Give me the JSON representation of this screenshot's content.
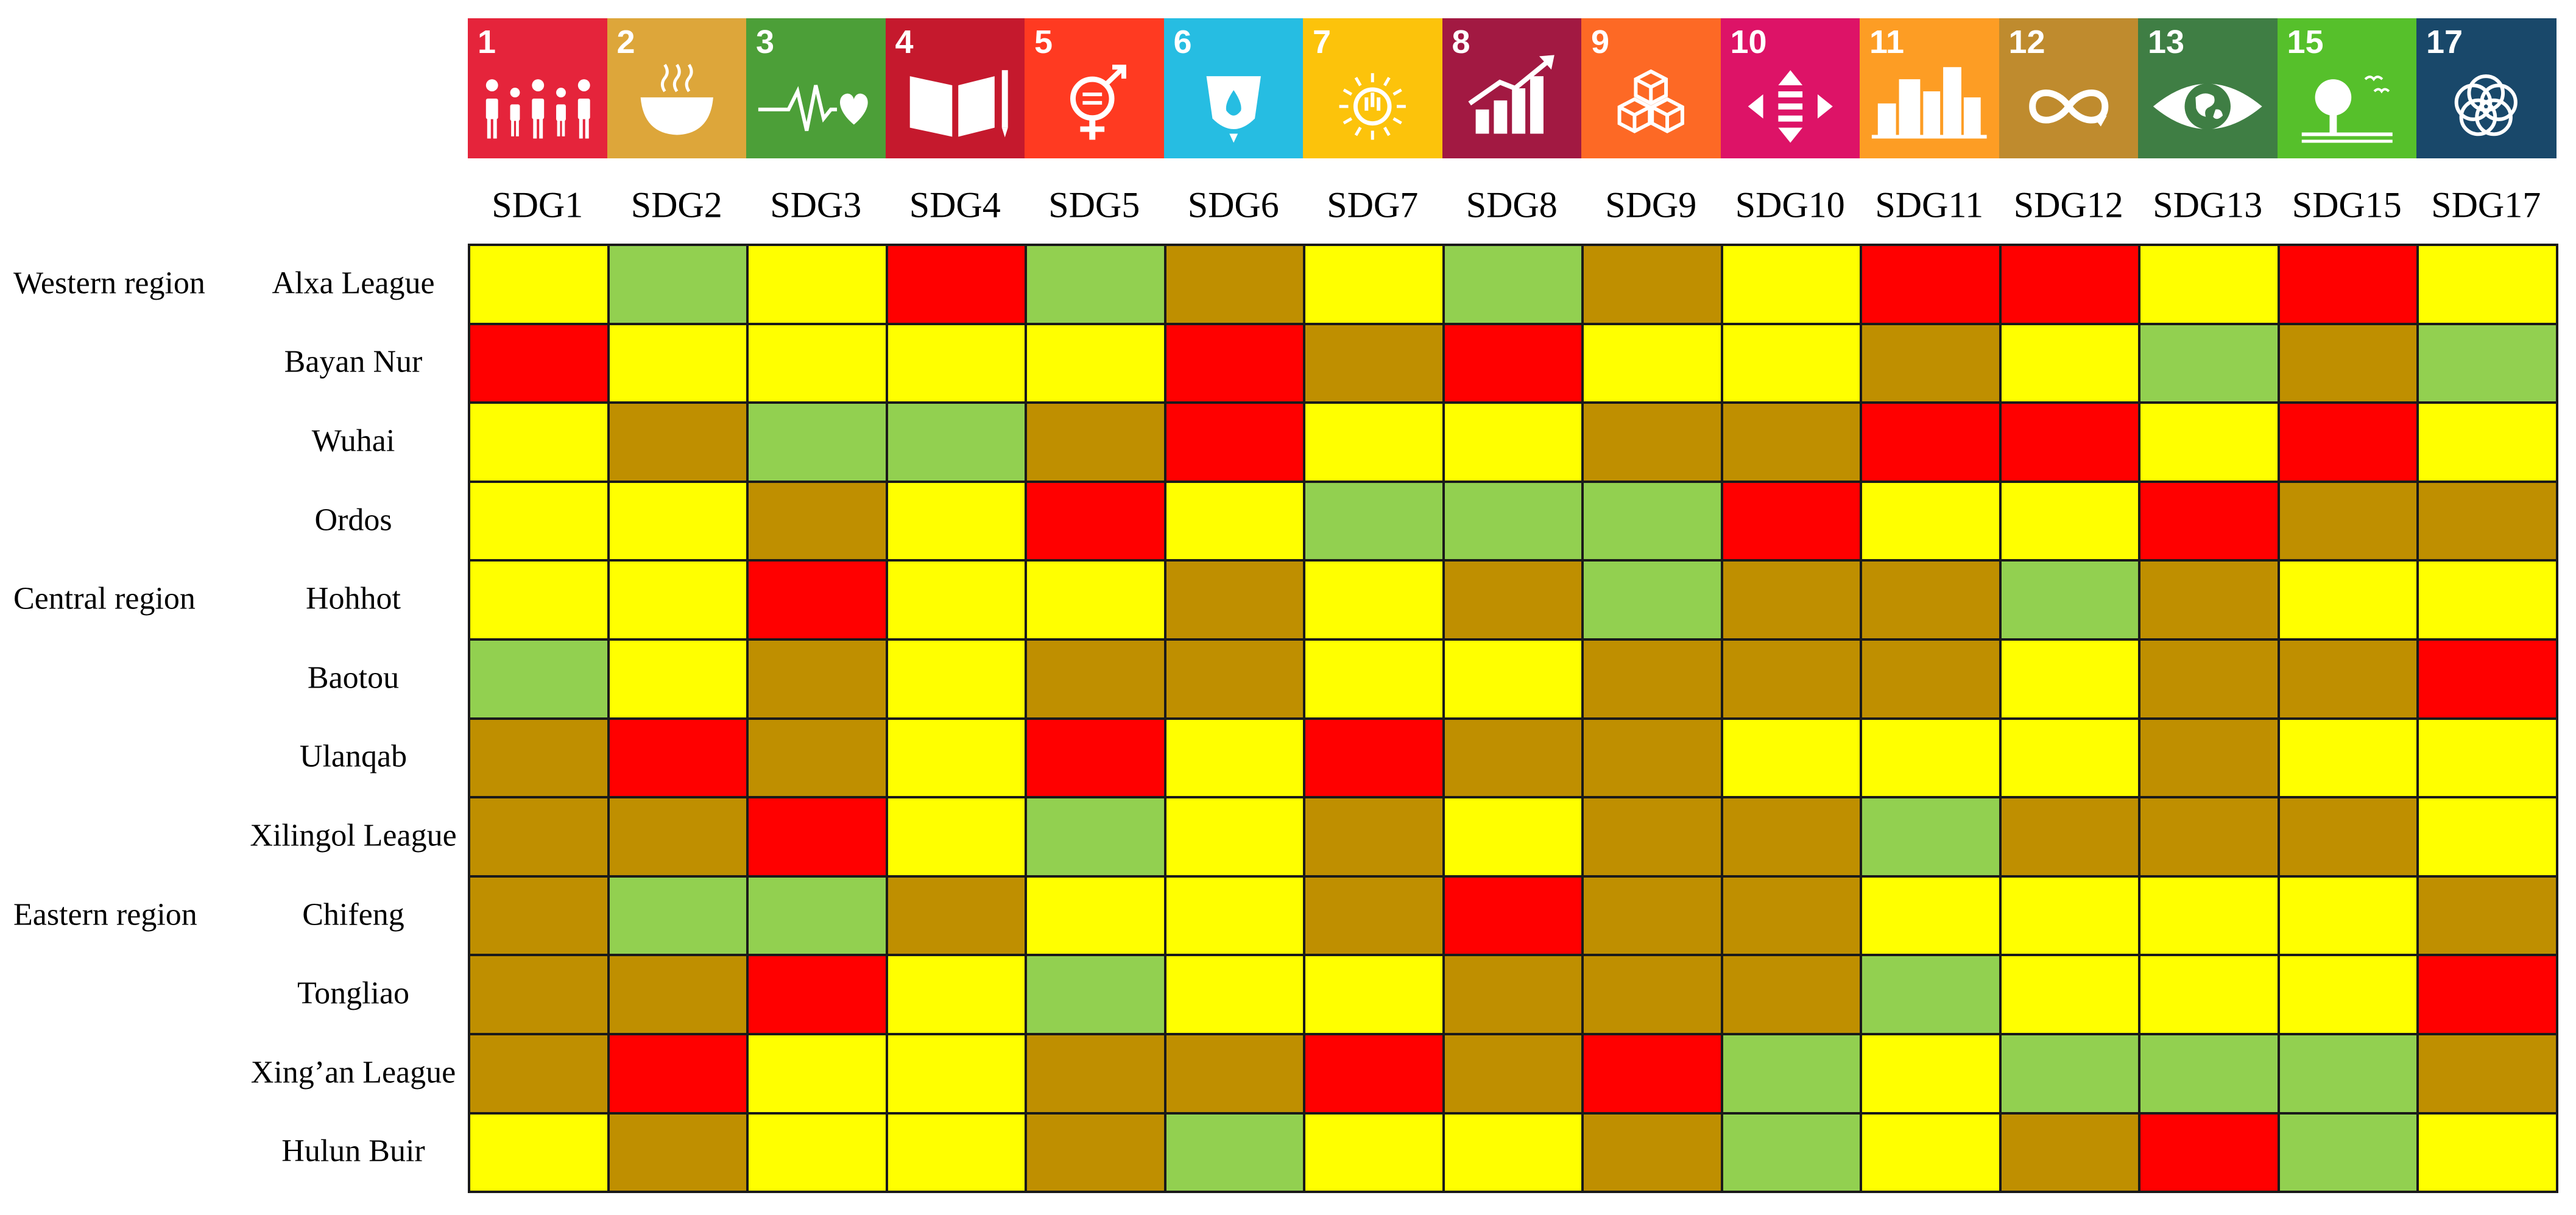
{
  "chart_data": {
    "type": "heatmap",
    "columns": [
      "SDG1",
      "SDG2",
      "SDG3",
      "SDG4",
      "SDG5",
      "SDG6",
      "SDG7",
      "SDG8",
      "SDG9",
      "SDG10",
      "SDG11",
      "SDG12",
      "SDG13",
      "SDG15",
      "SDG17"
    ],
    "tiles": [
      {
        "number": "1",
        "color": "#e5243b",
        "icon": "family-icon"
      },
      {
        "number": "2",
        "color": "#dda63a",
        "icon": "bowl-icon"
      },
      {
        "number": "3",
        "color": "#4c9f38",
        "icon": "heartbeat-icon"
      },
      {
        "number": "4",
        "color": "#c5192d",
        "icon": "book-icon"
      },
      {
        "number": "5",
        "color": "#ff3a21",
        "icon": "gender-equality-icon"
      },
      {
        "number": "6",
        "color": "#26bde2",
        "icon": "water-drop-icon"
      },
      {
        "number": "7",
        "color": "#fcc30b",
        "icon": "sun-power-icon"
      },
      {
        "number": "8",
        "color": "#a21942",
        "icon": "growth-chart-icon"
      },
      {
        "number": "9",
        "color": "#fd6925",
        "icon": "cubes-icon"
      },
      {
        "number": "10",
        "color": "#dd1367",
        "icon": "inequality-arrows-icon"
      },
      {
        "number": "11",
        "color": "#fd9d24",
        "icon": "city-buildings-icon"
      },
      {
        "number": "12",
        "color": "#bf8b2e",
        "icon": "infinity-icon"
      },
      {
        "number": "13",
        "color": "#3f7e44",
        "icon": "eye-globe-icon"
      },
      {
        "number": "15",
        "color": "#56c02b",
        "icon": "tree-birds-icon"
      },
      {
        "number": "17",
        "color": "#19486a",
        "icon": "rings-icon"
      }
    ],
    "regions": [
      {
        "label": "Western region",
        "row": 0
      },
      {
        "label": "Central region",
        "row": 4
      },
      {
        "label": "Eastern region",
        "row": 8
      }
    ],
    "rows": [
      "Alxa League",
      "Bayan Nur",
      "Wuhai",
      "Ordos",
      "Hohhot",
      "Baotou",
      "Ulanqab",
      "Xilingol League",
      "Chifeng",
      "Tongliao",
      "Xing’an League",
      "Hulun Buir"
    ],
    "level_colors": {
      "red": "#ff0000",
      "dark": "#bf8f00",
      "yellow": "#ffff00",
      "green": "#92d050"
    },
    "cells": [
      [
        "yellow",
        "green",
        "yellow",
        "red",
        "green",
        "dark",
        "yellow",
        "green",
        "dark",
        "yellow",
        "red",
        "red",
        "yellow",
        "red",
        "yellow"
      ],
      [
        "red",
        "yellow",
        "yellow",
        "yellow",
        "yellow",
        "red",
        "dark",
        "red",
        "yellow",
        "yellow",
        "dark",
        "yellow",
        "green",
        "dark",
        "green"
      ],
      [
        "yellow",
        "dark",
        "green",
        "green",
        "dark",
        "red",
        "yellow",
        "yellow",
        "dark",
        "dark",
        "red",
        "red",
        "yellow",
        "red",
        "yellow"
      ],
      [
        "yellow",
        "yellow",
        "dark",
        "yellow",
        "red",
        "yellow",
        "green",
        "green",
        "green",
        "red",
        "yellow",
        "yellow",
        "red",
        "dark",
        "dark"
      ],
      [
        "yellow",
        "yellow",
        "red",
        "yellow",
        "yellow",
        "dark",
        "yellow",
        "dark",
        "green",
        "dark",
        "dark",
        "green",
        "dark",
        "yellow",
        "yellow"
      ],
      [
        "green",
        "yellow",
        "dark",
        "yellow",
        "dark",
        "dark",
        "yellow",
        "yellow",
        "dark",
        "dark",
        "dark",
        "yellow",
        "dark",
        "dark",
        "red"
      ],
      [
        "dark",
        "red",
        "dark",
        "yellow",
        "red",
        "yellow",
        "red",
        "dark",
        "dark",
        "yellow",
        "yellow",
        "yellow",
        "dark",
        "yellow",
        "yellow"
      ],
      [
        "dark",
        "dark",
        "red",
        "yellow",
        "green",
        "yellow",
        "dark",
        "yellow",
        "dark",
        "dark",
        "green",
        "dark",
        "dark",
        "dark",
        "yellow"
      ],
      [
        "dark",
        "green",
        "green",
        "dark",
        "yellow",
        "yellow",
        "dark",
        "red",
        "dark",
        "dark",
        "yellow",
        "yellow",
        "yellow",
        "yellow",
        "dark"
      ],
      [
        "dark",
        "dark",
        "red",
        "yellow",
        "green",
        "yellow",
        "yellow",
        "dark",
        "dark",
        "dark",
        "green",
        "yellow",
        "yellow",
        "yellow",
        "red"
      ],
      [
        "dark",
        "red",
        "yellow",
        "yellow",
        "dark",
        "dark",
        "red",
        "dark",
        "red",
        "green",
        "yellow",
        "green",
        "green",
        "green",
        "dark"
      ],
      [
        "yellow",
        "dark",
        "yellow",
        "yellow",
        "dark",
        "green",
        "yellow",
        "yellow",
        "dark",
        "green",
        "yellow",
        "dark",
        "red",
        "green",
        "yellow"
      ]
    ]
  }
}
